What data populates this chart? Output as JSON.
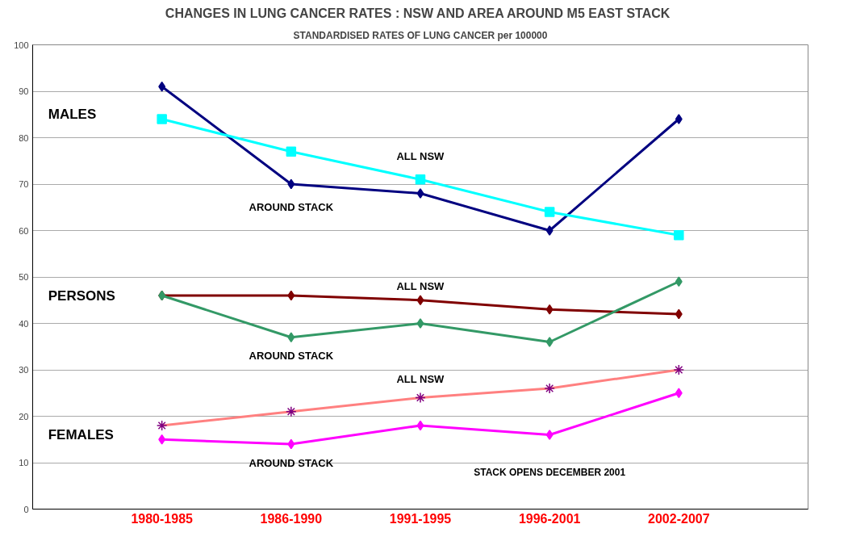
{
  "chart_data": {
    "type": "line",
    "title": "CHANGES IN LUNG CANCER RATES : NSW  AND AREA AROUND M5 EAST STACK",
    "subtitle": "STANDARDISED RATES OF LUNG CANCER per 100000",
    "categories": [
      "1980-1985",
      "1986-1990",
      "1991-1995",
      "1996-2001",
      "2002-2007"
    ],
    "series": [
      {
        "name": "AROUND STACK",
        "color": "#000080",
        "marker": "diamond",
        "values": [
          91,
          70,
          68,
          60,
          84
        ]
      },
      {
        "name": "ALL NSW",
        "color": "#00ffff",
        "marker": "square",
        "values": [
          84,
          77,
          71,
          64,
          59
        ]
      },
      {
        "name": "ALL NSW",
        "color": "#800000",
        "marker": "diamond",
        "values": [
          46,
          46,
          45,
          43,
          42
        ]
      },
      {
        "name": "AROUND STACK",
        "color": "#339966",
        "marker": "diamond",
        "values": [
          46,
          37,
          40,
          36,
          49
        ]
      },
      {
        "name": "ALL NSW",
        "color": "#ff8080",
        "marker": "cross",
        "colors": [
          "#800080",
          "#800080",
          "#800080",
          "#800080",
          "#800080"
        ],
        "values": [
          18,
          21,
          24,
          26,
          30
        ]
      },
      {
        "name": "AROUND STACK",
        "color": "#ff00ff",
        "marker": "diamond",
        "values": [
          15,
          14,
          18,
          16,
          25
        ]
      }
    ],
    "annotations": [
      "MALES",
      "PERSONS",
      "FEMALES",
      "STACK OPENS DECEMBER 2001"
    ],
    "ylim": [
      0,
      100
    ],
    "yticks": [
      0,
      10,
      20,
      30,
      40,
      50,
      60,
      70,
      80,
      90,
      100
    ],
    "grid": "y",
    "legend": false,
    "line_style": "solid"
  }
}
